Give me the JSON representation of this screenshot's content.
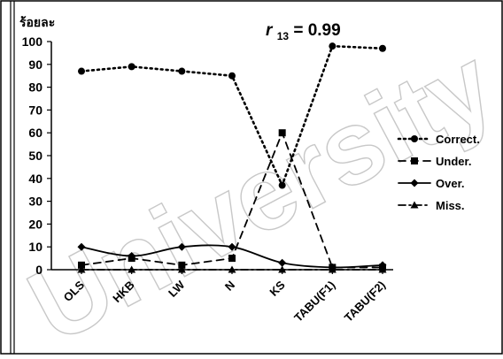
{
  "chart_data": {
    "type": "line",
    "title": "r",
    "title_subscript": "13",
    "title_suffix": " = 0.99",
    "ylabel": "ร้อยละ",
    "xlabel": "",
    "ylim": [
      0,
      100
    ],
    "yticks": [
      0,
      10,
      20,
      30,
      40,
      50,
      60,
      70,
      80,
      90,
      100
    ],
    "categories": [
      "OLS",
      "HKB",
      "LW",
      "N",
      "KS",
      "TABU(F1)",
      "TABU(F2)"
    ],
    "legend_position": "right",
    "grid": false,
    "watermark": "University",
    "series": [
      {
        "name": "Correct.",
        "values": [
          87,
          89,
          87,
          85,
          37,
          98,
          97
        ],
        "color": "#000000",
        "dash": "dotted",
        "marker": "circle"
      },
      {
        "name": "Under.",
        "values": [
          2,
          5,
          2,
          5,
          60,
          1,
          1
        ],
        "color": "#000000",
        "dash": "dashed",
        "marker": "square"
      },
      {
        "name": "Over.",
        "values": [
          10,
          6,
          10,
          10,
          3,
          1,
          2
        ],
        "color": "#000000",
        "dash": "solid",
        "marker": "diamond",
        "smooth": true
      },
      {
        "name": "Miss.",
        "values": [
          0,
          0,
          0,
          0,
          0,
          0,
          0
        ],
        "color": "#000000",
        "dash": "dashdot",
        "marker": "triangle"
      }
    ]
  }
}
